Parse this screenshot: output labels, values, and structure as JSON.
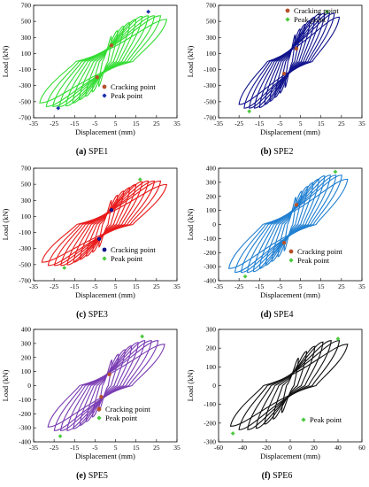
{
  "chart_data": [
    {
      "type": "line",
      "letter": "(a)",
      "name": "SPE1",
      "color": "#33dd33",
      "xlim": [
        -35,
        35
      ],
      "ylim": [
        -700,
        700
      ],
      "xticks": [
        -35,
        -25,
        -15,
        -5,
        5,
        15,
        25,
        35
      ],
      "yticks": [
        -700,
        -500,
        -300,
        -100,
        100,
        300,
        500,
        700
      ],
      "xlabel": "Displacement (mm)",
      "ylabel": "Load (kN)",
      "ymax": 570,
      "ymin": -560,
      "xmax": 30,
      "xmin": -32,
      "cycles": 10,
      "legend_position": "center-right",
      "legend": [
        {
          "label": "Cracking point",
          "color": "#b5522b"
        },
        {
          "label": "Peak point",
          "color": "#1a2fa8"
        }
      ],
      "cracking_points": [
        [
          3,
          200
        ],
        [
          -4,
          -195
        ]
      ],
      "peak_points": [
        [
          21,
          620
        ],
        [
          -23,
          -580
        ]
      ]
    },
    {
      "type": "line",
      "letter": "(b)",
      "name": "SPE2",
      "color": "#10138c",
      "xlim": [
        -35,
        35
      ],
      "ylim": [
        -700,
        700
      ],
      "xticks": [
        -35,
        -25,
        -15,
        -5,
        5,
        15,
        25,
        35
      ],
      "yticks": [
        -700,
        -500,
        -300,
        -100,
        100,
        300,
        500,
        700
      ],
      "xlabel": "Displacement (mm)",
      "ylabel": "Load (kN)",
      "ymax": 600,
      "ymin": -580,
      "xmax": 24,
      "xmin": -25,
      "cycles": 10,
      "legend_position": "top-center",
      "legend": [
        {
          "label": "Cracking point",
          "color": "#b5522b"
        },
        {
          "label": "Peak point",
          "color": "#4ec940"
        }
      ],
      "cracking_points": [
        [
          3,
          160
        ],
        [
          -3,
          -150
        ]
      ],
      "peak_points": [
        [
          18,
          620
        ],
        [
          -20,
          -620
        ]
      ]
    },
    {
      "type": "line",
      "letter": "(c)",
      "name": "SPE3",
      "color": "#e81a1a",
      "xlim": [
        -35,
        35
      ],
      "ylim": [
        -700,
        700
      ],
      "xticks": [
        -35,
        -25,
        -15,
        -5,
        5,
        15,
        25,
        35
      ],
      "yticks": [
        -700,
        -500,
        -300,
        -100,
        100,
        300,
        500,
        700
      ],
      "xlabel": "Displacement (mm)",
      "ylabel": "Load (kN)",
      "ymax": 540,
      "ymin": -510,
      "xmax": 30,
      "xmin": -31,
      "cycles": 10,
      "legend_position": "center-right",
      "legend": [
        {
          "label": "Cracking point",
          "color": "#10138c"
        },
        {
          "label": "Peak point",
          "color": "#4ec940"
        }
      ],
      "cracking_points": [
        [
          3,
          180
        ],
        [
          -3,
          -180
        ]
      ],
      "peak_points": [
        [
          17,
          560
        ],
        [
          -20,
          -540
        ]
      ]
    },
    {
      "type": "line",
      "letter": "(d)",
      "name": "SPE4",
      "color": "#1f7fd1",
      "xlim": [
        -35,
        35
      ],
      "ylim": [
        -400,
        400
      ],
      "xticks": [
        -35,
        -25,
        -15,
        -5,
        5,
        15,
        25,
        35
      ],
      "yticks": [
        -400,
        -300,
        -200,
        -100,
        0,
        100,
        200,
        300,
        400
      ],
      "xlabel": "Displacement (mm)",
      "ylabel": "Load (kN)",
      "ymax": 350,
      "ymin": -340,
      "xmax": 28,
      "xmin": -30,
      "cycles": 10,
      "legend_position": "lower-right",
      "legend": [
        {
          "label": "Cracking point",
          "color": "#b5522b"
        },
        {
          "label": "Peak point",
          "color": "#4ec940"
        }
      ],
      "cracking_points": [
        [
          3,
          140
        ],
        [
          -3,
          -130
        ]
      ],
      "peak_points": [
        [
          22,
          375
        ],
        [
          -22,
          -370
        ]
      ]
    },
    {
      "type": "line",
      "letter": "(e)",
      "name": "SPE5",
      "color": "#7a3cb3",
      "xlim": [
        -35,
        35
      ],
      "ylim": [
        -400,
        400
      ],
      "xticks": [
        -35,
        -25,
        -15,
        -5,
        5,
        15,
        25,
        35
      ],
      "yticks": [
        -400,
        -300,
        -200,
        -100,
        0,
        100,
        200,
        300,
        400
      ],
      "xlabel": "Displacement (mm)",
      "ylabel": "Load (kN)",
      "ymax": 320,
      "ymin": -320,
      "xmax": 29,
      "xmin": -28,
      "cycles": 9,
      "legend_position": "lower-center",
      "legend": [
        {
          "label": "Cracking point",
          "color": "#b5522b"
        },
        {
          "label": "Peak point",
          "color": "#4ec940"
        }
      ],
      "cracking_points": [
        [
          2,
          80
        ],
        [
          -2,
          -80
        ]
      ],
      "peak_points": [
        [
          18,
          350
        ],
        [
          -22,
          -360
        ]
      ]
    },
    {
      "type": "line",
      "letter": "(f)",
      "name": "SPE6",
      "color": "#111111",
      "xlim": [
        -60,
        60
      ],
      "ylim": [
        -300,
        300
      ],
      "xticks": [
        -60,
        -40,
        -20,
        0,
        20,
        40,
        60
      ],
      "yticks": [
        -300,
        -200,
        -100,
        0,
        100,
        200,
        300
      ],
      "xlabel": "Displacement (mm)",
      "ylabel": "Load (kN)",
      "ymax": 240,
      "ymin": -235,
      "xmax": 48,
      "xmin": -50,
      "cycles": 7,
      "legend_position": "lower-right",
      "legend": [
        {
          "label": "Peak point",
          "color": "#4ec940"
        }
      ],
      "cracking_points": [],
      "peak_points": [
        [
          40,
          250
        ],
        [
          -48,
          -255
        ]
      ]
    }
  ]
}
